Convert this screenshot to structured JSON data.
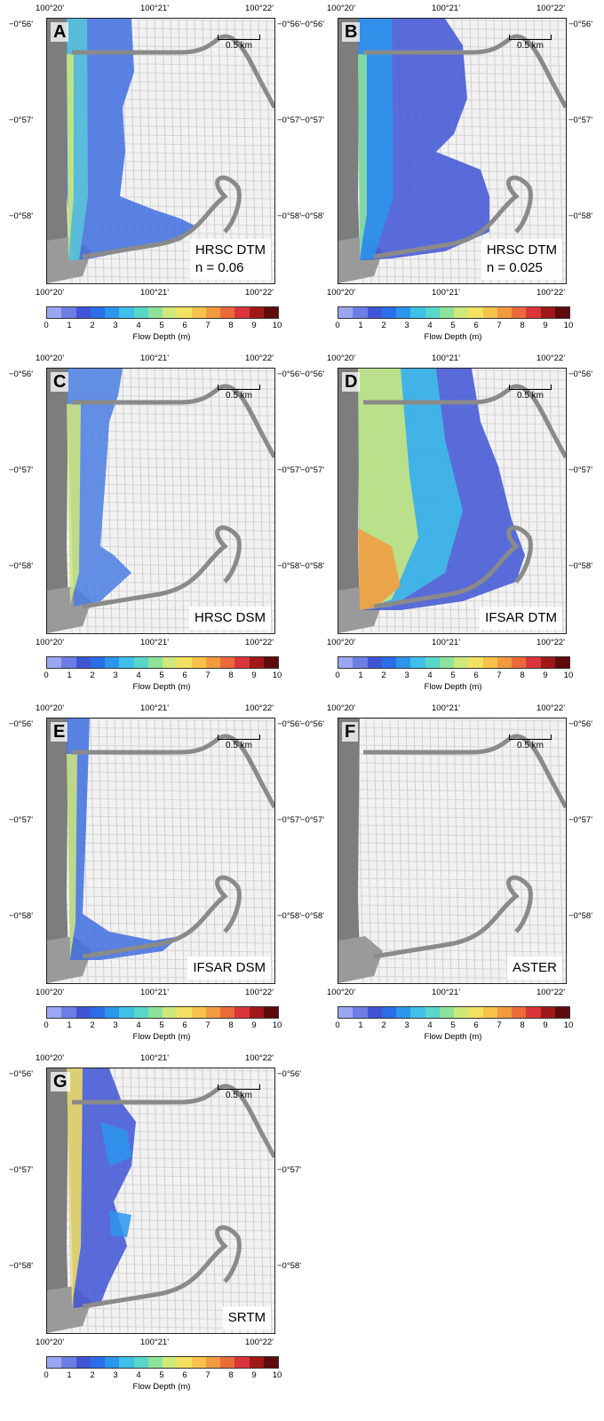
{
  "axes": {
    "lon_labels": [
      "100°20'",
      "100°21'",
      "100°22'"
    ],
    "lat_labels": [
      "−0°56'",
      "−0°57'",
      "−0°58'"
    ]
  },
  "scale_bar": "0.5 km",
  "colorbar": {
    "title": "Flow Depth (m)",
    "ticks": [
      "0",
      "1",
      "2",
      "3",
      "4",
      "5",
      "6",
      "7",
      "8",
      "9",
      "10"
    ],
    "colors": [
      "#9aa6f2",
      "#6c7de6",
      "#3f55d6",
      "#2a6ee8",
      "#2c95ec",
      "#3ec0e8",
      "#58d6c8",
      "#8ee39a",
      "#cfe87a",
      "#f3e160",
      "#f6c24a",
      "#f29a3e",
      "#ea6a3a",
      "#d9353a",
      "#a01818",
      "#5e0b0b"
    ]
  },
  "panels": [
    {
      "letter": "A",
      "label": "HRSC DTM",
      "sublabel": "n = 0.06",
      "flood": "medium"
    },
    {
      "letter": "B",
      "label": "HRSC DTM",
      "sublabel": "n = 0.025",
      "flood": "large"
    },
    {
      "letter": "C",
      "label": "HRSC DSM",
      "sublabel": "",
      "flood": "small"
    },
    {
      "letter": "D",
      "label": "IFSAR DTM",
      "sublabel": "",
      "flood": "deep"
    },
    {
      "letter": "E",
      "label": "IFSAR DSM",
      "sublabel": "",
      "flood": "thin"
    },
    {
      "letter": "F",
      "label": "ASTER",
      "sublabel": "",
      "flood": "none"
    },
    {
      "letter": "G",
      "label": "SRTM",
      "sublabel": "",
      "flood": "patchy"
    }
  ]
}
